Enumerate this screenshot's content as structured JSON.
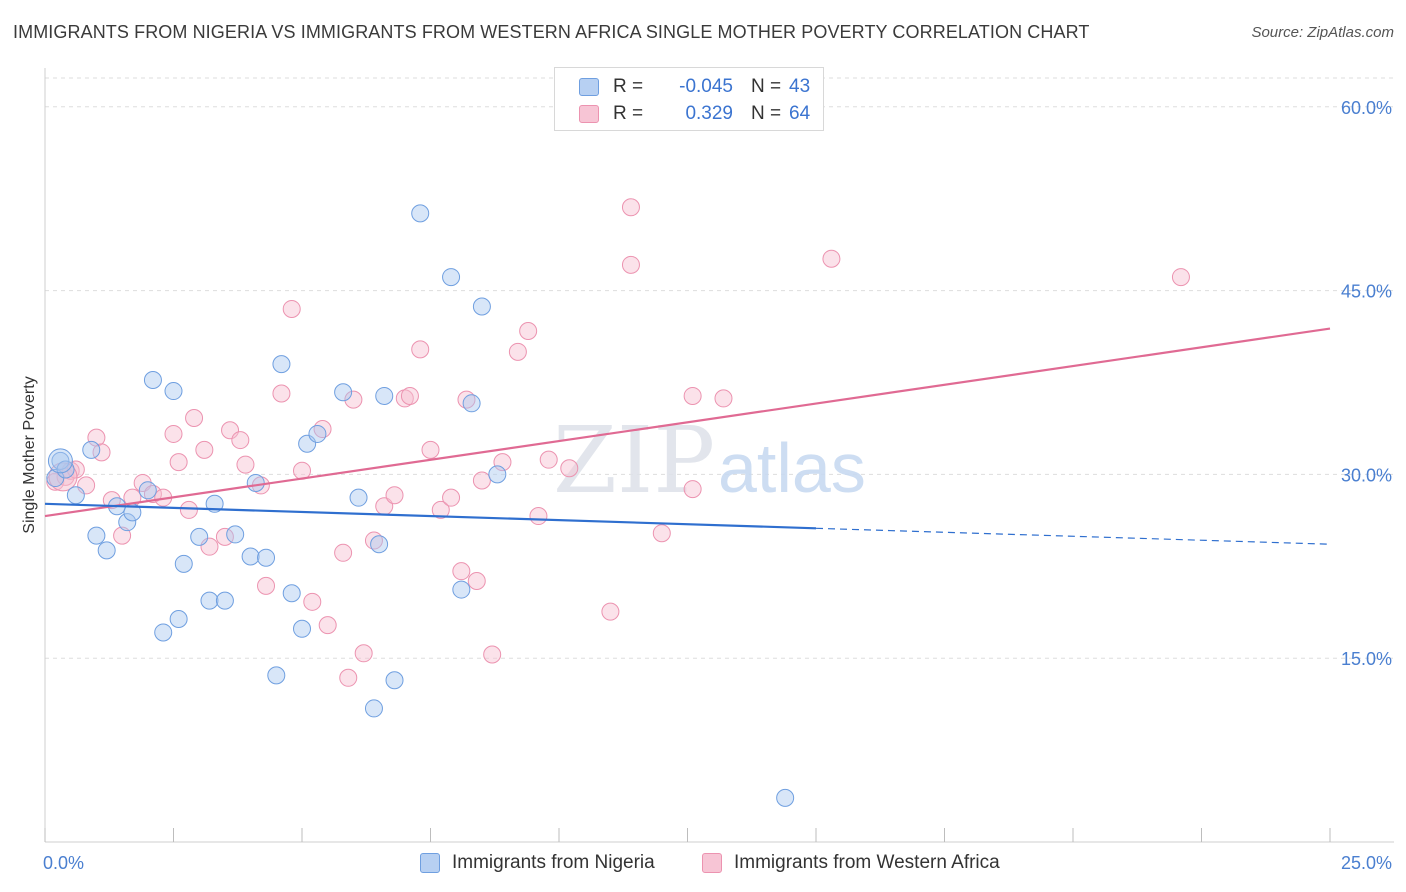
{
  "title": "IMMIGRANTS FROM NIGERIA VS IMMIGRANTS FROM WESTERN AFRICA SINGLE MOTHER POVERTY CORRELATION CHART",
  "source": "Source: ZipAtlas.com",
  "watermark": {
    "zip": "ZIP",
    "atlas": "atlas"
  },
  "colors": {
    "nigeria_fill": "#a9c8f0",
    "nigeria_stroke": "#6f9fe0",
    "nigeria_line": "#2f6fcf",
    "wafrica_fill": "#f6bfd0",
    "wafrica_stroke": "#ec93b0",
    "wafrica_line": "#e06a93",
    "tick_text": "#4a7fd0",
    "grid": "#dddddd"
  },
  "legend": {
    "rows": [
      {
        "r_label": "R =",
        "r_value": "-0.045",
        "n_label": "N =",
        "n_value": "43"
      },
      {
        "r_label": "R =",
        "r_value": "0.329",
        "n_label": "N =",
        "n_value": "64"
      }
    ]
  },
  "chart_data": {
    "type": "scatter",
    "title": "IMMIGRANTS FROM NIGERIA VS IMMIGRANTS FROM WESTERN AFRICA SINGLE MOTHER POVERTY CORRELATION CHART",
    "xlabel": "",
    "ylabel": "Single Mother Poverty",
    "xlim": [
      0,
      25
    ],
    "ylim": [
      0,
      63
    ],
    "x_tick_labels": [
      "0.0%",
      "25.0%"
    ],
    "y_ticks": [
      15,
      30,
      45,
      60
    ],
    "y_tick_labels": [
      "15.0%",
      "30.0%",
      "45.0%",
      "60.0%"
    ],
    "grid": true,
    "legend_position": "top-center",
    "series": [
      {
        "name": "Immigrants from Nigeria",
        "r": -0.045,
        "n": 43,
        "trend": {
          "x0": 0,
          "y0": 27.6,
          "x1": 15,
          "y1": 25.6,
          "dashed_to_x": 25,
          "dashed_to_y": 24.3
        },
        "points": [
          [
            0.3,
            31.1
          ],
          [
            0.6,
            28.3
          ],
          [
            0.9,
            32.0
          ],
          [
            1.0,
            25.0
          ],
          [
            1.2,
            23.8
          ],
          [
            1.4,
            27.4
          ],
          [
            1.6,
            26.1
          ],
          [
            1.7,
            26.9
          ],
          [
            2.0,
            28.7
          ],
          [
            2.1,
            37.7
          ],
          [
            2.3,
            17.1
          ],
          [
            2.5,
            36.8
          ],
          [
            2.6,
            18.2
          ],
          [
            2.7,
            22.7
          ],
          [
            3.0,
            24.9
          ],
          [
            3.2,
            19.7
          ],
          [
            3.3,
            27.6
          ],
          [
            3.5,
            19.7
          ],
          [
            3.7,
            25.1
          ],
          [
            4.0,
            23.3
          ],
          [
            4.1,
            29.3
          ],
          [
            4.3,
            23.2
          ],
          [
            4.5,
            13.6
          ],
          [
            4.6,
            39.0
          ],
          [
            4.8,
            20.3
          ],
          [
            5.0,
            17.4
          ],
          [
            5.1,
            32.5
          ],
          [
            5.3,
            33.3
          ],
          [
            5.8,
            36.7
          ],
          [
            6.1,
            28.1
          ],
          [
            6.4,
            10.9
          ],
          [
            6.5,
            24.3
          ],
          [
            6.6,
            36.4
          ],
          [
            6.8,
            13.2
          ],
          [
            7.3,
            51.3
          ],
          [
            7.9,
            46.1
          ],
          [
            8.1,
            20.6
          ],
          [
            8.3,
            35.8
          ],
          [
            8.5,
            43.7
          ],
          [
            8.8,
            30.0
          ],
          [
            14.4,
            3.6
          ],
          [
            0.2,
            29.7
          ],
          [
            0.4,
            30.4
          ]
        ]
      },
      {
        "name": "Immigrants from Western Africa",
        "r": 0.329,
        "n": 64,
        "trend": {
          "x0": 0,
          "y0": 26.6,
          "x1": 25,
          "y1": 41.9
        },
        "points": [
          [
            0.2,
            29.4
          ],
          [
            0.4,
            29.8
          ],
          [
            0.5,
            30.3
          ],
          [
            0.6,
            30.4
          ],
          [
            0.8,
            29.1
          ],
          [
            1.0,
            33.0
          ],
          [
            1.1,
            31.8
          ],
          [
            1.3,
            27.9
          ],
          [
            1.5,
            25.0
          ],
          [
            1.7,
            28.1
          ],
          [
            1.9,
            29.3
          ],
          [
            2.1,
            28.4
          ],
          [
            2.3,
            28.1
          ],
          [
            2.5,
            33.3
          ],
          [
            2.6,
            31.0
          ],
          [
            2.8,
            27.1
          ],
          [
            2.9,
            34.6
          ],
          [
            3.1,
            32.0
          ],
          [
            3.2,
            24.1
          ],
          [
            3.5,
            24.9
          ],
          [
            3.6,
            33.6
          ],
          [
            3.8,
            32.8
          ],
          [
            3.9,
            30.8
          ],
          [
            4.2,
            29.1
          ],
          [
            4.3,
            20.9
          ],
          [
            4.6,
            36.6
          ],
          [
            4.8,
            43.5
          ],
          [
            5.0,
            30.3
          ],
          [
            5.2,
            19.6
          ],
          [
            5.4,
            33.7
          ],
          [
            5.5,
            17.7
          ],
          [
            5.8,
            23.6
          ],
          [
            5.9,
            13.4
          ],
          [
            6.0,
            36.1
          ],
          [
            6.2,
            15.4
          ],
          [
            6.4,
            24.6
          ],
          [
            6.6,
            27.4
          ],
          [
            6.8,
            28.3
          ],
          [
            7.0,
            36.2
          ],
          [
            7.1,
            36.4
          ],
          [
            7.3,
            40.2
          ],
          [
            7.5,
            32.0
          ],
          [
            7.7,
            27.1
          ],
          [
            7.9,
            28.1
          ],
          [
            8.1,
            22.1
          ],
          [
            8.2,
            36.1
          ],
          [
            8.4,
            21.3
          ],
          [
            8.5,
            29.5
          ],
          [
            8.7,
            15.3
          ],
          [
            8.9,
            31.0
          ],
          [
            9.2,
            40.0
          ],
          [
            9.4,
            41.7
          ],
          [
            9.6,
            26.6
          ],
          [
            9.8,
            31.2
          ],
          [
            10.2,
            30.5
          ],
          [
            11.0,
            18.8
          ],
          [
            11.4,
            47.1
          ],
          [
            11.4,
            51.8
          ],
          [
            12.0,
            25.2
          ],
          [
            12.6,
            28.8
          ],
          [
            12.6,
            36.4
          ],
          [
            13.2,
            36.2
          ],
          [
            15.3,
            47.6
          ],
          [
            22.1,
            46.1
          ]
        ]
      }
    ]
  },
  "bottom_legend": {
    "items": [
      {
        "label": "Immigrants from Nigeria"
      },
      {
        "label": "Immigrants from Western Africa"
      }
    ]
  }
}
